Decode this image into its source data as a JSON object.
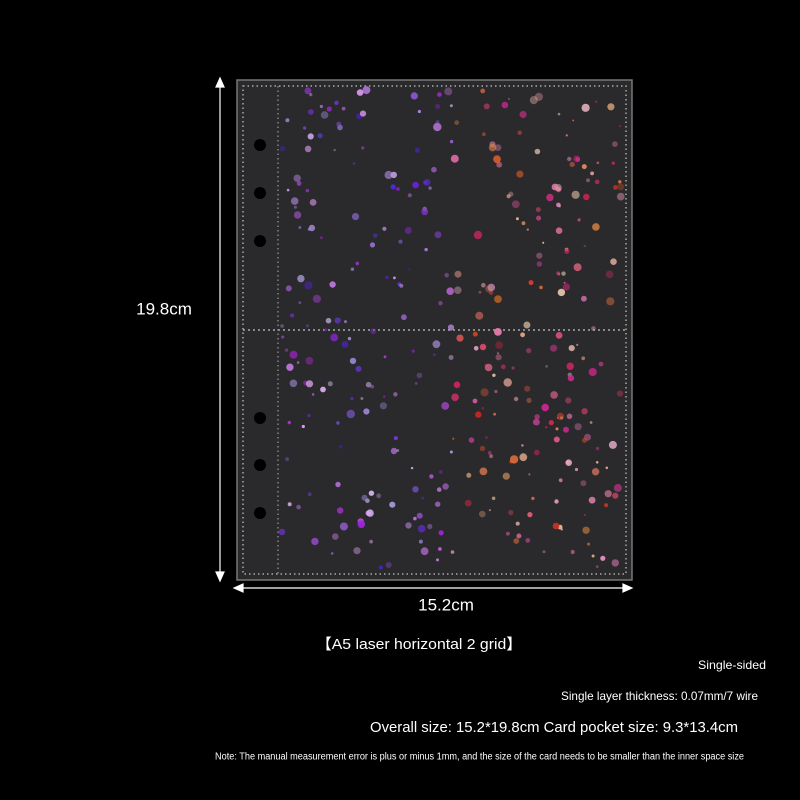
{
  "product": {
    "height_label": "19.8cm",
    "width_label": "15.2cm",
    "title": "【A5 laser horizontal 2 grid】",
    "sides": "Single-sided",
    "thickness": "Single layer thickness: 0.07mm/7 wire",
    "sizes": "Overall size: 15.2*19.8cm Card pocket size: 9.3*13.4cm",
    "note": "Note: The manual measurement error is plus or minus 1mm, and the size of the card needs to be smaller than the inner space size"
  }
}
